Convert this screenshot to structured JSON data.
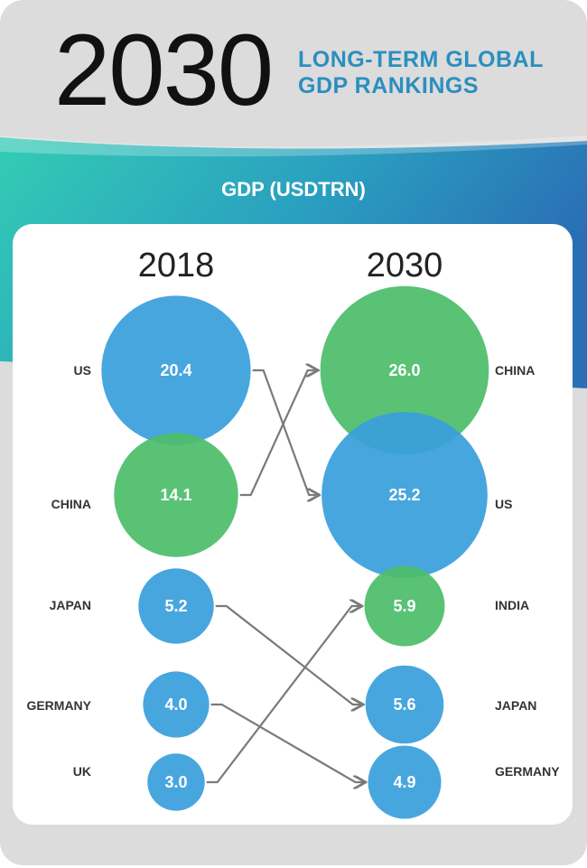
{
  "header": {
    "year": "2030",
    "subtitle_line1": "LONG-TERM GLOBAL",
    "subtitle_line2": "GDP RANKINGS",
    "metric": "GDP (USDTRN)"
  },
  "colors": {
    "us_blue": "#3a9fdc",
    "china_green": "#4cbd6a",
    "connector": "#7a7a7a",
    "background": "#dcdcdc",
    "band_teal": "#35c9b5",
    "band_blue": "#2a78b8"
  },
  "chart_data": {
    "type": "bubble-rank",
    "title": "GDP (USDTRN)",
    "columns": [
      "2018",
      "2030"
    ],
    "rankings": {
      "2018": [
        {
          "country": "US",
          "value": 20.4,
          "label": "20.4"
        },
        {
          "country": "CHINA",
          "value": 14.1,
          "label": "14.1"
        },
        {
          "country": "JAPAN",
          "value": 5.2,
          "label": "5.2"
        },
        {
          "country": "GERMANY",
          "value": 4.0,
          "label": "4.0"
        },
        {
          "country": "UK",
          "value": 3.0,
          "label": "3.0"
        }
      ],
      "2030": [
        {
          "country": "CHINA",
          "value": 26.0,
          "label": "26.0"
        },
        {
          "country": "US",
          "value": 25.2,
          "label": "25.2"
        },
        {
          "country": "INDIA",
          "value": 5.9,
          "label": "5.9"
        },
        {
          "country": "JAPAN",
          "value": 5.6,
          "label": "5.6"
        },
        {
          "country": "GERMANY",
          "value": 4.9,
          "label": "4.9"
        }
      ]
    },
    "connections": [
      {
        "from": "US",
        "to": "US"
      },
      {
        "from": "CHINA",
        "to": "CHINA"
      },
      {
        "from": "JAPAN",
        "to": "JAPAN"
      },
      {
        "from": "GERMANY",
        "to": "GERMANY"
      },
      {
        "from": "UK",
        "to": "INDIA"
      }
    ]
  }
}
